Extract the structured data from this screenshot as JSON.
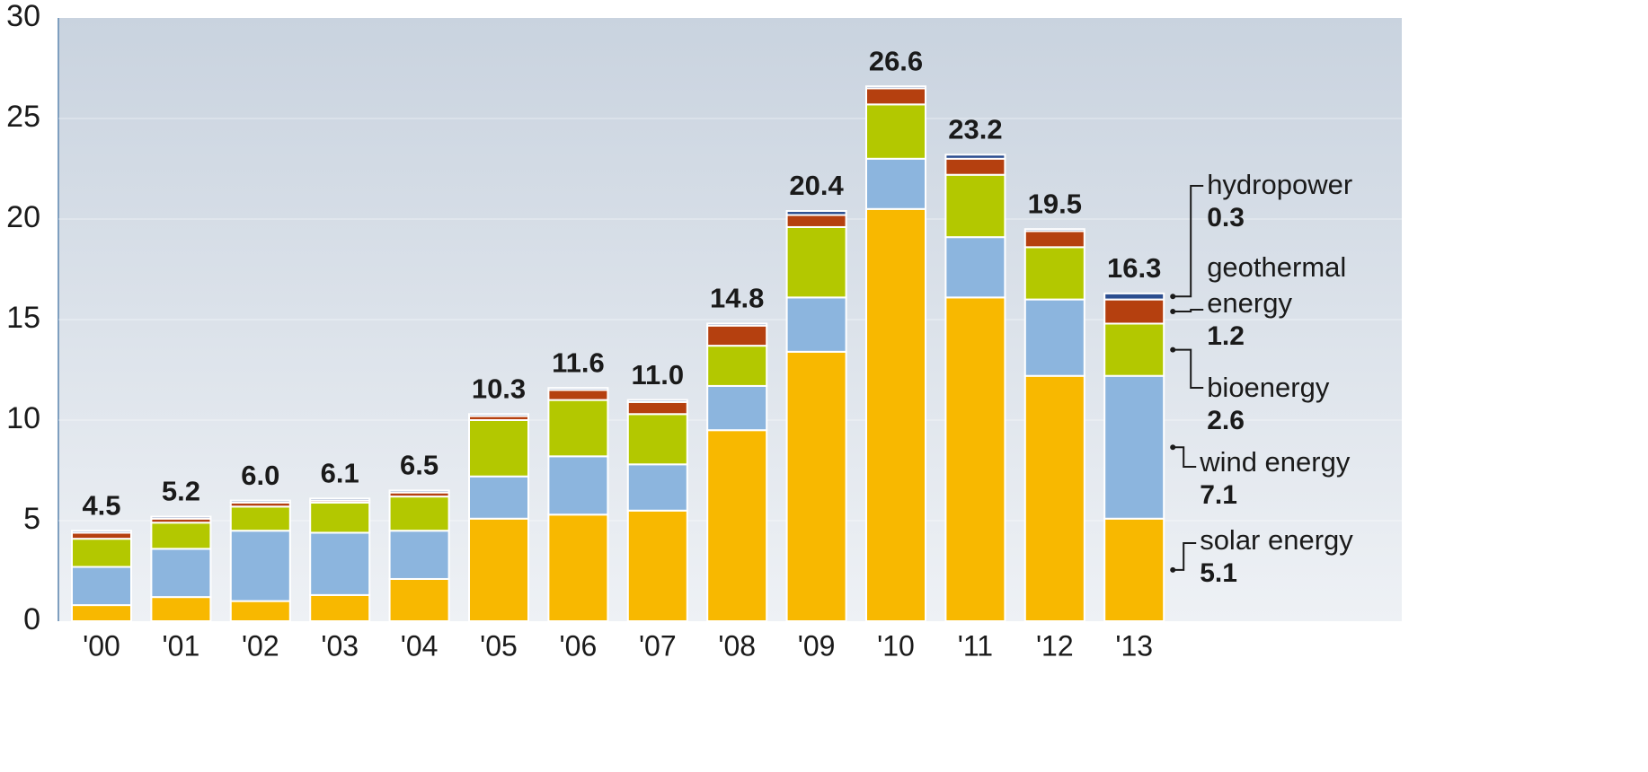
{
  "chart_data": {
    "type": "stacked_bar",
    "categories": [
      "'00",
      "'01",
      "'02",
      "'03",
      "'04",
      "'05",
      "'06",
      "'07",
      "'08",
      "'09",
      "'10",
      "'11",
      "'12",
      "'13"
    ],
    "series": [
      {
        "name": "solar energy",
        "color": "#f8b800",
        "values": [
          0.8,
          1.2,
          1.0,
          1.3,
          2.1,
          5.1,
          5.3,
          5.5,
          9.5,
          13.4,
          20.5,
          16.1,
          12.2,
          5.1
        ]
      },
      {
        "name": "wind energy",
        "color": "#8cb5de",
        "values": [
          1.9,
          2.4,
          3.5,
          3.1,
          2.4,
          2.1,
          2.9,
          2.3,
          2.2,
          2.7,
          2.5,
          3.0,
          3.8,
          7.1
        ]
      },
      {
        "name": "bioenergy",
        "color": "#b3c800",
        "values": [
          1.4,
          1.3,
          1.2,
          1.5,
          1.7,
          2.8,
          2.8,
          2.5,
          2.0,
          3.5,
          2.7,
          3.1,
          2.6,
          2.6
        ]
      },
      {
        "name": "geothermal energy",
        "color": "#b5400f",
        "values": [
          0.3,
          0.2,
          0.2,
          0.1,
          0.2,
          0.2,
          0.5,
          0.6,
          1.0,
          0.6,
          0.8,
          0.8,
          0.8,
          1.2
        ]
      },
      {
        "name": "hydropower",
        "color": "#2b4d8f",
        "values": [
          0.1,
          0.1,
          0.1,
          0.1,
          0.1,
          0.1,
          0.1,
          0.1,
          0.1,
          0.2,
          0.1,
          0.2,
          0.1,
          0.3
        ]
      }
    ],
    "totals": {
      "values": [
        4.5,
        5.2,
        6.0,
        6.1,
        6.5,
        10.3,
        11.6,
        11.0,
        14.8,
        20.4,
        26.6,
        23.2,
        19.5,
        16.3
      ],
      "value_labels": [
        "4.5",
        "5.2",
        "6.0",
        "6.1",
        "6.5",
        "10.3",
        "11.6",
        "11.0",
        "14.8",
        "20.4",
        "26.6",
        "23.2",
        "19.5",
        "16.3"
      ]
    },
    "ylim": [
      0,
      30
    ],
    "yticks": [
      0,
      5,
      10,
      15,
      20,
      25,
      30
    ],
    "grid": true
  }
}
